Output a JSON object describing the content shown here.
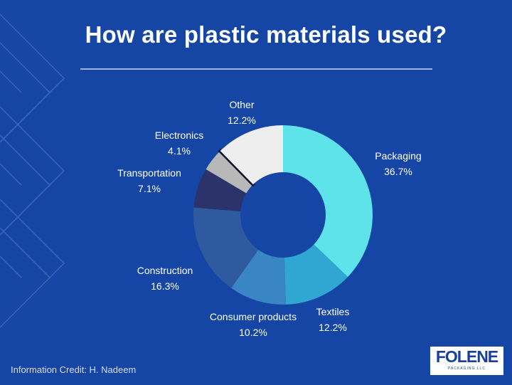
{
  "title": "How are plastic materials used?",
  "credit": "Information Credit: H. Nadeem",
  "logo": {
    "word": "FOLENE",
    "sub": "PACKAGING LLC"
  },
  "colors": {
    "background": "#1546a6",
    "pattern": "#4d71c2"
  },
  "chart_data": {
    "type": "donut",
    "title": "How are plastic materials used?",
    "slices": [
      {
        "name": "Packaging",
        "value": 36.7,
        "label": "36.7%",
        "color": "#5ee3ea"
      },
      {
        "name": "Textiles",
        "value": 12.2,
        "label": "12.2%",
        "color": "#2fa7d2"
      },
      {
        "name": "Consumer products",
        "value": 10.2,
        "label": "10.2%",
        "color": "#3a85c4"
      },
      {
        "name": "Construction",
        "value": 16.3,
        "label": "16.3%",
        "color": "#2f5aa0"
      },
      {
        "name": "Transportation",
        "value": 7.1,
        "label": "7.1%",
        "color": "#2b336a"
      },
      {
        "name": "Electronics",
        "value": 4.1,
        "label": "4.1%",
        "color": "#b8b8b8"
      },
      {
        "name": "Other",
        "value": 12.2,
        "label": "12.2%",
        "color": "#eeeeee"
      }
    ]
  }
}
